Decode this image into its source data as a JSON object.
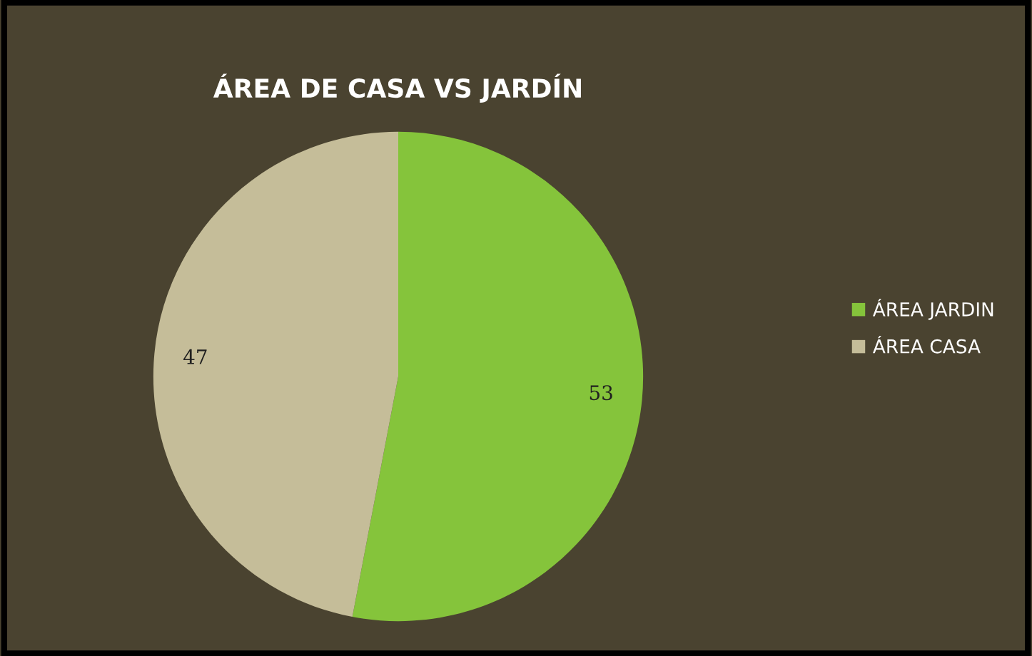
{
  "chart_data": {
    "type": "pie",
    "title": "ÁREA DE CASA VS JARDÍN",
    "categories": [
      "ÁREA JARDIN",
      "ÁREA CASA"
    ],
    "values": [
      53,
      47
    ],
    "colors": [
      "#85c43b",
      "#c5bd99"
    ],
    "data_labels": true,
    "legend": "right"
  }
}
